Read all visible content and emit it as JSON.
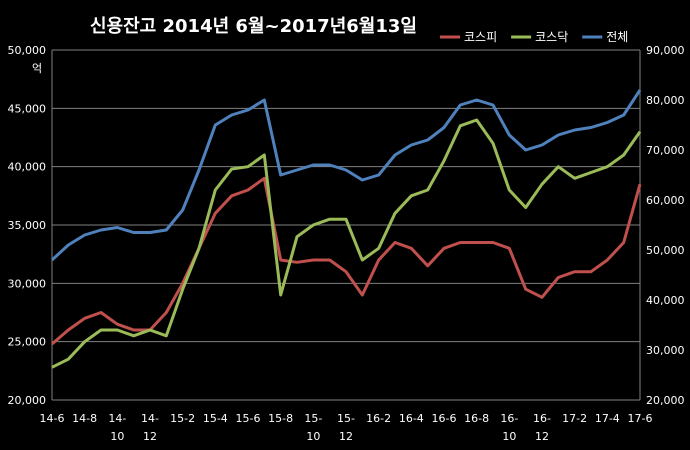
{
  "chart_data": {
    "type": "line",
    "title": "신용잔고 2014년 6월~2017년6월13일",
    "ylabel_left_unit": "억",
    "left_ylim": [
      20000,
      50000
    ],
    "right_ylim": [
      20000,
      90000
    ],
    "left_yticks": [
      "20,000",
      "25,000",
      "30,000",
      "35,000",
      "40,000",
      "45,000",
      "50,000"
    ],
    "right_yticks": [
      "20,000",
      "30,000",
      "40,000",
      "50,000",
      "60,000",
      "70,000",
      "80,000",
      "90,000"
    ],
    "left_ytick_values": [
      20000,
      25000,
      30000,
      35000,
      40000,
      45000,
      50000
    ],
    "right_ytick_values": [
      20000,
      30000,
      40000,
      50000,
      60000,
      70000,
      80000,
      90000
    ],
    "xtick_labels": [
      {
        "line1": "14-6",
        "line2": ""
      },
      {
        "line1": "14-8",
        "line2": ""
      },
      {
        "line1": "14-",
        "line2": "10"
      },
      {
        "line1": "14-",
        "line2": "12"
      },
      {
        "line1": "15-2",
        "line2": ""
      },
      {
        "line1": "15-4",
        "line2": ""
      },
      {
        "line1": "15-6",
        "line2": ""
      },
      {
        "line1": "15-8",
        "line2": ""
      },
      {
        "line1": "15-",
        "line2": "10"
      },
      {
        "line1": "15-",
        "line2": "12"
      },
      {
        "line1": "16-2",
        "line2": ""
      },
      {
        "line1": "16-4",
        "line2": ""
      },
      {
        "line1": "16-6",
        "line2": ""
      },
      {
        "line1": "16-8",
        "line2": ""
      },
      {
        "line1": "16-",
        "line2": "10"
      },
      {
        "line1": "16-",
        "line2": "12"
      },
      {
        "line1": "17-2",
        "line2": ""
      },
      {
        "line1": "17-4",
        "line2": ""
      },
      {
        "line1": "17-6",
        "line2": ""
      }
    ],
    "x": [
      "2014-06",
      "2014-07",
      "2014-08",
      "2014-09",
      "2014-10",
      "2014-11",
      "2014-12",
      "2015-01",
      "2015-02",
      "2015-03",
      "2015-04",
      "2015-05",
      "2015-06",
      "2015-07",
      "2015-08",
      "2015-09",
      "2015-10",
      "2015-11",
      "2015-12",
      "2016-01",
      "2016-02",
      "2016-03",
      "2016-04",
      "2016-05",
      "2016-06",
      "2016-07",
      "2016-08",
      "2016-09",
      "2016-10",
      "2016-11",
      "2016-12",
      "2017-01",
      "2017-02",
      "2017-03",
      "2017-04",
      "2017-05",
      "2017-06"
    ],
    "series": [
      {
        "name": "코스피",
        "axis": "left",
        "color": "#c0504d",
        "values": [
          24800,
          26000,
          27000,
          27500,
          26500,
          26000,
          26000,
          27500,
          30000,
          33000,
          36000,
          37500,
          38000,
          39000,
          32000,
          31800,
          32000,
          32000,
          31000,
          29000,
          32000,
          33500,
          33000,
          31500,
          33000,
          33500,
          33500,
          33500,
          33000,
          29500,
          28800,
          30500,
          31000,
          31000,
          32000,
          33500,
          38500
        ]
      },
      {
        "name": "코스닥",
        "axis": "left",
        "color": "#9bbb59",
        "values": [
          22800,
          23500,
          25000,
          26000,
          26000,
          25500,
          26000,
          25500,
          29500,
          33000,
          38000,
          39800,
          40000,
          41000,
          29000,
          34000,
          35000,
          35500,
          35500,
          32000,
          33000,
          36000,
          37500,
          38000,
          40500,
          43500,
          44000,
          42000,
          38000,
          36500,
          38500,
          40000,
          39000,
          39500,
          40000,
          41000,
          43000
        ]
      },
      {
        "name": "전체",
        "axis": "right",
        "color": "#4f81bd",
        "values": [
          48000,
          51000,
          53000,
          54000,
          54500,
          53500,
          53500,
          54000,
          58000,
          66000,
          75000,
          77000,
          78000,
          80000,
          65000,
          66000,
          67000,
          67000,
          66000,
          64000,
          65000,
          69000,
          71000,
          72000,
          74500,
          79000,
          80000,
          79000,
          73000,
          70000,
          71000,
          73000,
          74000,
          74500,
          75500,
          77000,
          82000
        ]
      }
    ],
    "legend_position": "top-right",
    "grid": "horizontal"
  }
}
